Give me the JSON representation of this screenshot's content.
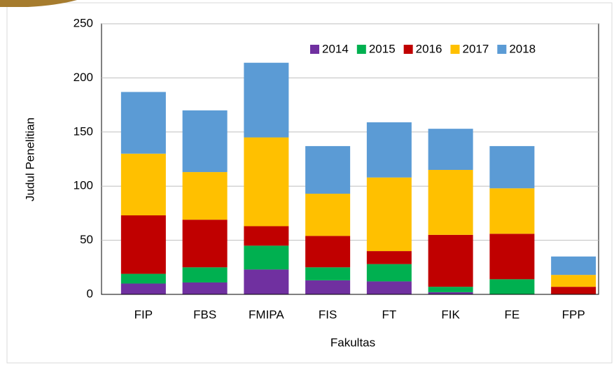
{
  "chart_data": {
    "type": "stacked_bar",
    "x_label": "Fakultas",
    "y_label": "Judul Penelitian",
    "categories": [
      "FIP",
      "FBS",
      "FMIPA",
      "FIS",
      "FT",
      "FIK",
      "FE",
      "FPP"
    ],
    "series": [
      {
        "name": "2014",
        "color": "#7030a0",
        "values": [
          10,
          11,
          23,
          13,
          12,
          2,
          0,
          0
        ]
      },
      {
        "name": "2015",
        "color": "#00b050",
        "values": [
          9,
          14,
          22,
          12,
          16,
          5,
          14,
          0
        ]
      },
      {
        "name": "2016",
        "color": "#c00000",
        "values": [
          54,
          44,
          18,
          29,
          12,
          48,
          42,
          7
        ]
      },
      {
        "name": "2017",
        "color": "#ffc000",
        "values": [
          57,
          44,
          82,
          39,
          68,
          60,
          42,
          11
        ]
      },
      {
        "name": "2018",
        "color": "#5b9bd5",
        "values": [
          57,
          57,
          69,
          44,
          51,
          38,
          39,
          17
        ]
      }
    ],
    "ylim": [
      0,
      250
    ],
    "yticks": [
      0,
      50,
      100,
      150,
      200,
      250
    ],
    "grid": true,
    "legend": "top-right"
  }
}
